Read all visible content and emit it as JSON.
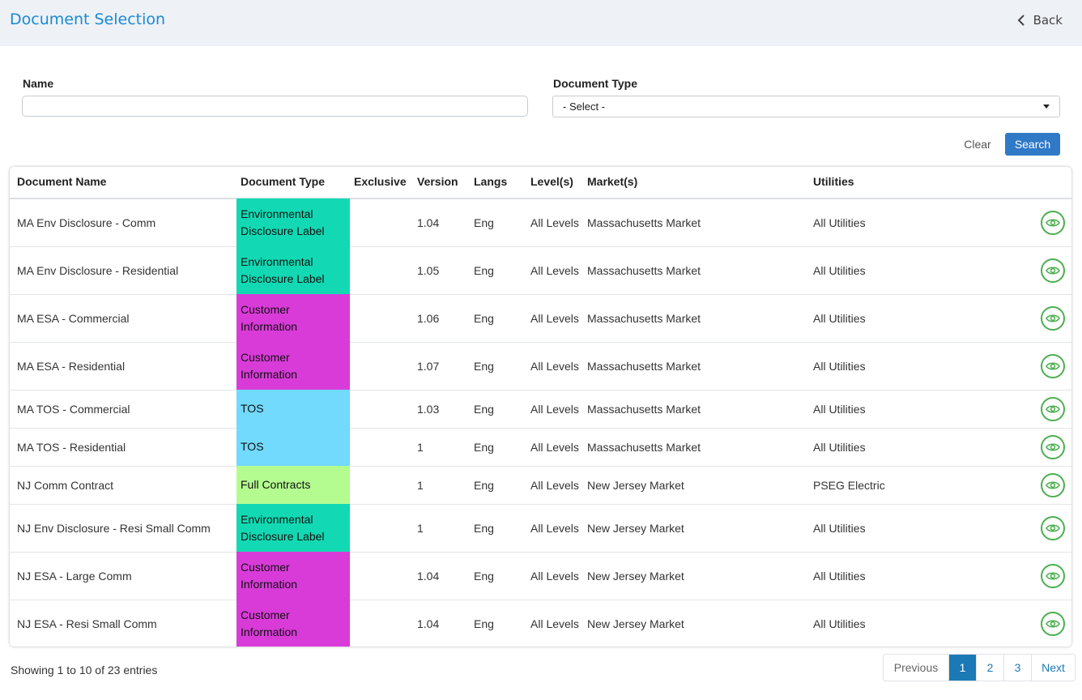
{
  "header": {
    "title": "Document Selection",
    "back_label": "Back"
  },
  "filters": {
    "name_label": "Name",
    "name_value": "",
    "type_label": "Document Type",
    "type_selected": "- Select -",
    "clear_label": "Clear",
    "search_label": "Search"
  },
  "table": {
    "columns": [
      "Document Name",
      "Document Type",
      "Exclusive",
      "Version",
      "Langs",
      "Level(s)",
      "Market(s)",
      "Utilities"
    ],
    "rows": [
      {
        "name": "MA Env Disclosure - Comm",
        "type_line1": "Environmental",
        "type_line2": "Disclosure Label",
        "type_color": "#12d9b3",
        "exclusive": "",
        "version": "1.04",
        "langs": "Eng",
        "levels": "All Levels",
        "markets": "Massachusetts Market",
        "utilities": "All Utilities"
      },
      {
        "name": "MA Env Disclosure - Residential",
        "type_line1": "Environmental",
        "type_line2": "Disclosure Label",
        "type_color": "#12d9b3",
        "exclusive": "",
        "version": "1.05",
        "langs": "Eng",
        "levels": "All Levels",
        "markets": "Massachusetts Market",
        "utilities": "All Utilities"
      },
      {
        "name": "MA ESA - Commercial",
        "type_line1": "Customer",
        "type_line2": "Information",
        "type_color": "#d93bd9",
        "exclusive": "",
        "version": "1.06",
        "langs": "Eng",
        "levels": "All Levels",
        "markets": "Massachusetts Market",
        "utilities": "All Utilities"
      },
      {
        "name": "MA ESA - Residential",
        "type_line1": "Customer",
        "type_line2": "Information",
        "type_color": "#d93bd9",
        "exclusive": "",
        "version": "1.07",
        "langs": "Eng",
        "levels": "All Levels",
        "markets": "Massachusetts Market",
        "utilities": "All Utilities"
      },
      {
        "name": "MA TOS - Commercial",
        "type_line1": "TOS",
        "type_line2": "",
        "type_color": "#72dafc",
        "exclusive": "",
        "version": "1.03",
        "langs": "Eng",
        "levels": "All Levels",
        "markets": "Massachusetts Market",
        "utilities": "All Utilities"
      },
      {
        "name": "MA TOS - Residential",
        "type_line1": "TOS",
        "type_line2": "",
        "type_color": "#72dafc",
        "exclusive": "",
        "version": "1",
        "langs": "Eng",
        "levels": "All Levels",
        "markets": "Massachusetts Market",
        "utilities": "All Utilities"
      },
      {
        "name": "NJ Comm Contract",
        "type_line1": "Full Contracts",
        "type_line2": "",
        "type_color": "#b4fc90",
        "exclusive": "",
        "version": "1",
        "langs": "Eng",
        "levels": "All Levels",
        "markets": "New Jersey Market",
        "utilities": "PSEG Electric"
      },
      {
        "name": "NJ Env Disclosure - Resi Small Comm",
        "type_line1": "Environmental",
        "type_line2": "Disclosure Label",
        "type_color": "#12d9b3",
        "exclusive": "",
        "version": "1",
        "langs": "Eng",
        "levels": "All Levels",
        "markets": "New Jersey Market",
        "utilities": "All Utilities"
      },
      {
        "name": "NJ ESA - Large Comm",
        "type_line1": "Customer",
        "type_line2": "Information",
        "type_color": "#d93bd9",
        "exclusive": "",
        "version": "1.04",
        "langs": "Eng",
        "levels": "All Levels",
        "markets": "New Jersey Market",
        "utilities": "All Utilities"
      },
      {
        "name": "NJ ESA - Resi Small Comm",
        "type_line1": "Customer",
        "type_line2": "Information",
        "type_color": "#d93bd9",
        "exclusive": "",
        "version": "1.04",
        "langs": "Eng",
        "levels": "All Levels",
        "markets": "New Jersey Market",
        "utilities": "All Utilities"
      }
    ],
    "view_icon": "eye-icon"
  },
  "footer": {
    "info": "Showing 1 to 10 of 23 entries",
    "pagination": {
      "previous": "Previous",
      "pages": [
        "1",
        "2",
        "3"
      ],
      "current": "1",
      "next": "Next"
    }
  }
}
